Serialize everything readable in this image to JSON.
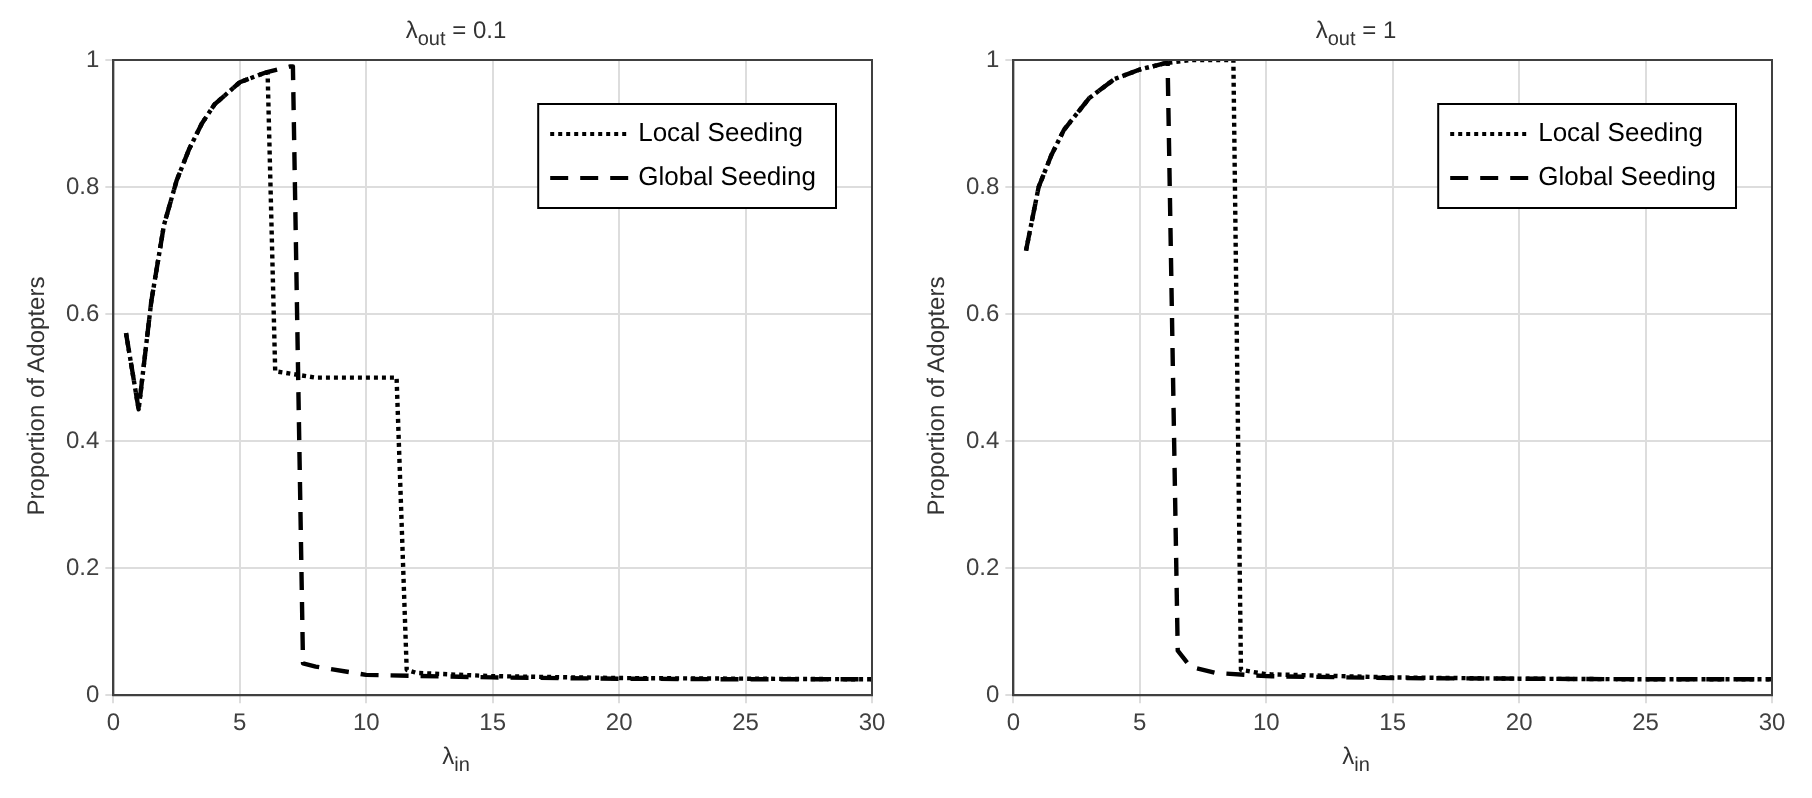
{
  "chart_data": [
    {
      "type": "line",
      "title": "λ$_{out}$ = 0.1",
      "xlabel": "λ$_{in}$",
      "ylabel": "Proportion of Adopters",
      "xlim": [
        0,
        30
      ],
      "xticks": [
        0,
        5,
        10,
        15,
        20,
        25,
        30
      ],
      "ylim": [
        0,
        1
      ],
      "yticks": [
        0,
        0.2,
        0.4,
        0.6,
        0.8,
        1
      ],
      "grid": true,
      "legend": "top right",
      "series": [
        {
          "name": "Local Seeding",
          "color": "#000000",
          "line_style": "dotted",
          "x": [
            0.5,
            1.0,
            1.5,
            2,
            2.5,
            3,
            3.5,
            4,
            5,
            6,
            6.1,
            6.4,
            8,
            10,
            11.2,
            11.6,
            12,
            15,
            20,
            25,
            30
          ],
          "values": [
            0.57,
            0.45,
            0.62,
            0.74,
            0.81,
            0.86,
            0.9,
            0.93,
            0.965,
            0.98,
            0.98,
            0.51,
            0.5,
            0.5,
            0.5,
            0.04,
            0.035,
            0.03,
            0.027,
            0.026,
            0.025
          ]
        },
        {
          "name": "Global Seeding",
          "color": "#000000",
          "line_style": "dashed",
          "x": [
            0.5,
            1.0,
            1.5,
            2,
            2.5,
            3,
            3.5,
            4,
            5,
            6,
            7,
            7.1,
            7.5,
            8,
            10,
            15,
            20,
            25,
            30
          ],
          "values": [
            0.57,
            0.45,
            0.62,
            0.74,
            0.81,
            0.86,
            0.9,
            0.93,
            0.965,
            0.98,
            0.99,
            0.99,
            0.05,
            0.045,
            0.032,
            0.028,
            0.026,
            0.025,
            0.025
          ]
        }
      ]
    },
    {
      "type": "line",
      "title": "λ$_{out}$ = 1",
      "xlabel": "λ$_{in}$",
      "ylabel": "Proportion of Adopters",
      "xlim": [
        0,
        30
      ],
      "xticks": [
        0,
        5,
        10,
        15,
        20,
        25,
        30
      ],
      "ylim": [
        0,
        1
      ],
      "yticks": [
        0,
        0.2,
        0.4,
        0.6,
        0.8,
        1
      ],
      "grid": true,
      "legend": "top right",
      "series": [
        {
          "name": "Local Seeding",
          "color": "#000000",
          "line_style": "dotted",
          "x": [
            0.5,
            1,
            1.5,
            2,
            3,
            4,
            5,
            6,
            7,
            8.7,
            9.0,
            10,
            15,
            20,
            25,
            30
          ],
          "values": [
            0.7,
            0.8,
            0.85,
            0.89,
            0.94,
            0.97,
            0.985,
            0.995,
            1,
            1,
            0.04,
            0.033,
            0.028,
            0.026,
            0.025,
            0.025
          ]
        },
        {
          "name": "Global Seeding",
          "color": "#000000",
          "line_style": "dashed",
          "x": [
            0.5,
            1,
            1.5,
            2,
            3,
            4,
            5,
            6,
            6.1,
            6.5,
            7,
            8,
            10,
            15,
            20,
            25,
            30
          ],
          "values": [
            0.7,
            0.8,
            0.85,
            0.89,
            0.94,
            0.97,
            0.985,
            0.995,
            0.995,
            0.07,
            0.045,
            0.035,
            0.03,
            0.027,
            0.026,
            0.025,
            0.025
          ]
        }
      ]
    }
  ]
}
